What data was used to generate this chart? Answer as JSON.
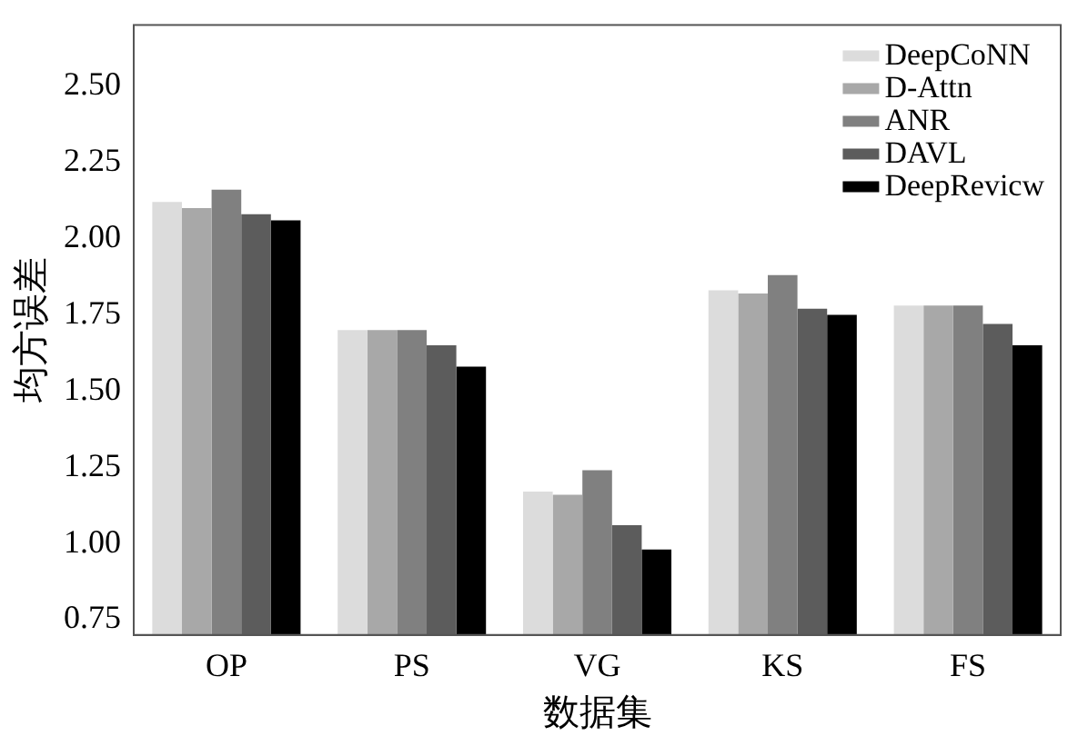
{
  "chart_data": {
    "type": "bar",
    "xlabel": "数据集",
    "ylabel": "均方误差",
    "categories": [
      "OP",
      "PS",
      "VG",
      "KS",
      "FS"
    ],
    "series": [
      {
        "name": "DeepCoNN",
        "color": "#dcdcdc",
        "values": [
          2.12,
          1.7,
          1.17,
          1.83,
          1.78
        ]
      },
      {
        "name": "D-Attn",
        "color": "#a8a8a8",
        "values": [
          2.1,
          1.7,
          1.16,
          1.82,
          1.78
        ]
      },
      {
        "name": "ANR",
        "color": "#808080",
        "values": [
          2.16,
          1.7,
          1.24,
          1.88,
          1.78
        ]
      },
      {
        "name": "DAVL",
        "color": "#5c5c5c",
        "values": [
          2.08,
          1.65,
          1.06,
          1.77,
          1.72
        ]
      },
      {
        "name": "DeepRevicw",
        "color": "#000000",
        "values": [
          2.06,
          1.58,
          0.98,
          1.75,
          1.65
        ]
      }
    ],
    "ylim": [
      0.7,
      2.7
    ],
    "yticks": [
      {
        "value": 0.75,
        "label": "0.75"
      },
      {
        "value": 1,
        "label": "1.00"
      },
      {
        "value": 1.25,
        "label": "1.25"
      },
      {
        "value": 1.5,
        "label": "1.50"
      },
      {
        "value": 1.75,
        "label": "1.75"
      },
      {
        "value": 2,
        "label": "2.00"
      },
      {
        "value": 2.25,
        "label": "2.25"
      },
      {
        "value": 2.5,
        "label": "2.50"
      }
    ],
    "grid": false,
    "legend": "top right"
  }
}
